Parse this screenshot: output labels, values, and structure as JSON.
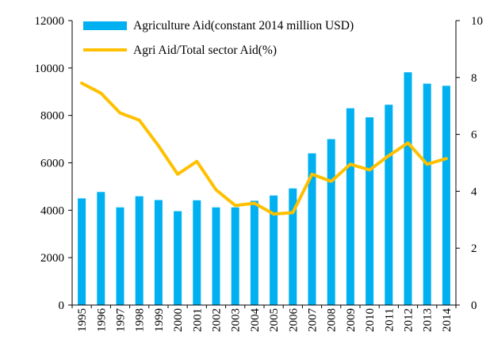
{
  "chart_data": {
    "type": "bar",
    "categories": [
      "1995",
      "1996",
      "1997",
      "1998",
      "1999",
      "2000",
      "2001",
      "2002",
      "2003",
      "2004",
      "2005",
      "2006",
      "2007",
      "2008",
      "2009",
      "2010",
      "2011",
      "2012",
      "2013",
      "2014"
    ],
    "series": [
      {
        "name": "Agriculture Aid(constant 2014 million USD)",
        "type": "bar",
        "axis": "left",
        "color": "#00B0F0",
        "values": [
          4500,
          4770,
          4120,
          4590,
          4430,
          3960,
          4420,
          4120,
          4120,
          4400,
          4620,
          4920,
          6400,
          7000,
          8300,
          7920,
          8450,
          9820,
          9340,
          9250
        ]
      },
      {
        "name": "Agri Aid/Total sector Aid(%)",
        "type": "line",
        "axis": "right",
        "color": "#FFC000",
        "values": [
          7.8,
          7.45,
          6.75,
          6.5,
          5.6,
          4.6,
          5.05,
          4.05,
          3.5,
          3.58,
          3.2,
          3.25,
          4.6,
          4.35,
          4.95,
          4.75,
          5.25,
          5.7,
          4.95,
          5.15
        ]
      }
    ],
    "yaxis_left": {
      "ylim": [
        0,
        12000
      ],
      "ticks": [
        "0",
        "2000",
        "4000",
        "6000",
        "8000",
        "10000",
        "12000"
      ]
    },
    "yaxis_right": {
      "ylim": [
        0,
        10
      ],
      "ticks": [
        "0",
        "2",
        "4",
        "6",
        "8",
        "10"
      ]
    },
    "title": "",
    "xlabel": "",
    "ylabel": "",
    "legend": {
      "placement": "top-center"
    },
    "grid": false
  }
}
